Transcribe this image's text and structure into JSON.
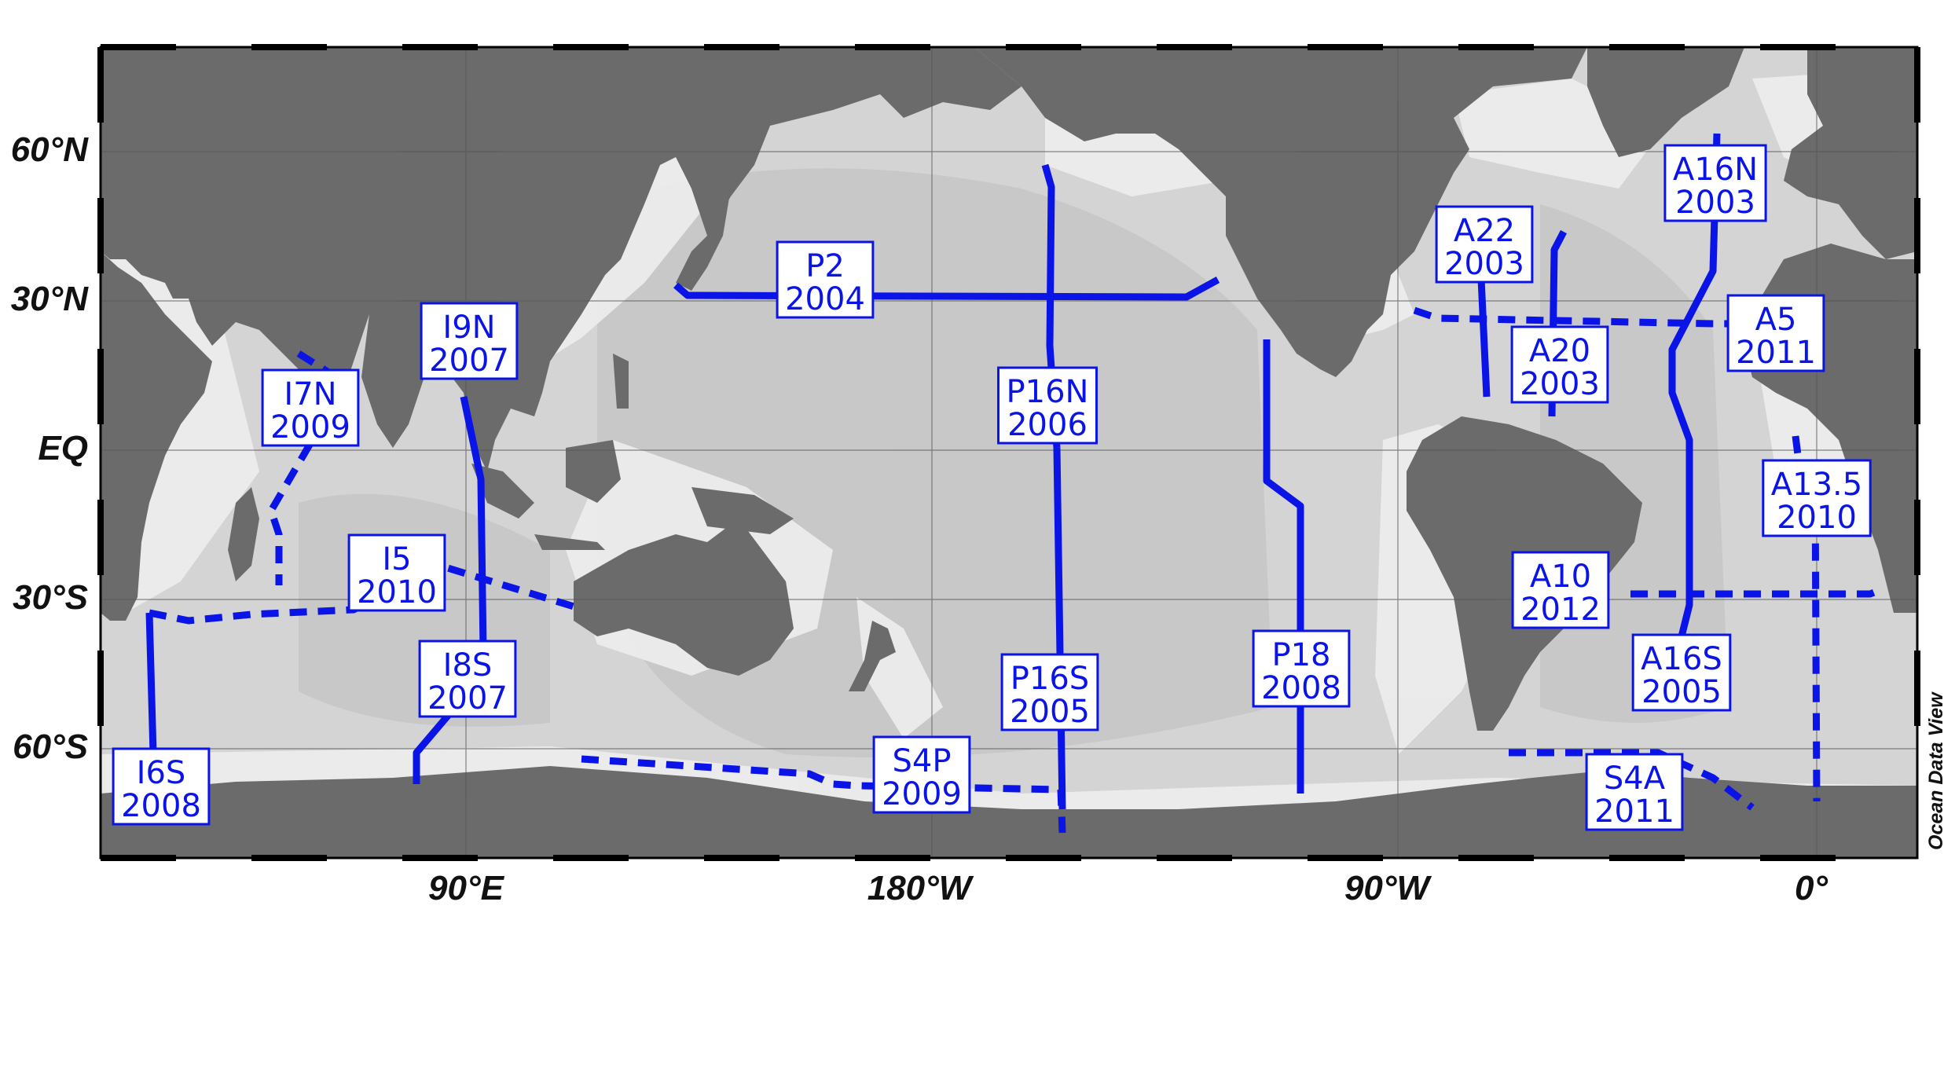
{
  "map": {
    "lat_ticks": [
      "60°N",
      "30°N",
      "EQ",
      "30°S",
      "60°S"
    ],
    "lon_ticks": [
      "90°E",
      "180°W",
      "90°W",
      "0°"
    ],
    "credit": "Ocean Data View",
    "colors": {
      "ocean": "#d4d4d4",
      "land": "#6b6b6b",
      "shelf": "#efefef",
      "track": "#0a14e6",
      "frame": "#000000"
    },
    "sections": [
      {
        "id": "P2",
        "year": "2004",
        "style": "solid"
      },
      {
        "id": "P16N",
        "year": "2006",
        "style": "solid"
      },
      {
        "id": "P16S",
        "year": "2005",
        "style": "solid"
      },
      {
        "id": "P18",
        "year": "2008",
        "style": "solid"
      },
      {
        "id": "S4P",
        "year": "2009",
        "style": "dashed"
      },
      {
        "id": "I9N",
        "year": "2007",
        "style": "solid"
      },
      {
        "id": "I8S",
        "year": "2007",
        "style": "solid"
      },
      {
        "id": "I7N",
        "year": "2009",
        "style": "dashed"
      },
      {
        "id": "I5",
        "year": "2010",
        "style": "dashed"
      },
      {
        "id": "I6S",
        "year": "2008",
        "style": "solid"
      },
      {
        "id": "A22",
        "year": "2003",
        "style": "solid"
      },
      {
        "id": "A20",
        "year": "2003",
        "style": "solid"
      },
      {
        "id": "A5",
        "year": "2011",
        "style": "dashed"
      },
      {
        "id": "A16N",
        "year": "2003",
        "style": "solid"
      },
      {
        "id": "A16S",
        "year": "2005",
        "style": "solid"
      },
      {
        "id": "A13.5",
        "year": "2010",
        "style": "dashed"
      },
      {
        "id": "A10",
        "year": "2012",
        "style": "dashed"
      },
      {
        "id": "S4A",
        "year": "2011",
        "style": "dashed"
      }
    ]
  }
}
